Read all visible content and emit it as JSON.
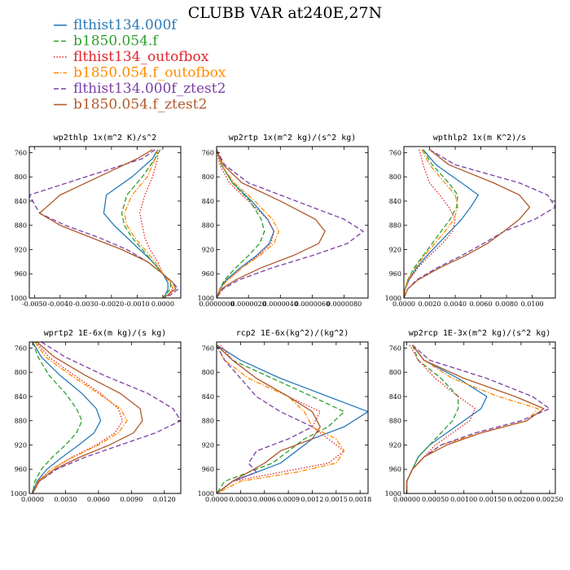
{
  "figure": {
    "title": "CLUBB VAR at240E,27N"
  },
  "legend": [
    {
      "label": "flthist134.000f",
      "color": "#2a7ab8",
      "dash": "solid"
    },
    {
      "label": "b1850.054.f",
      "color": "#2ca02c",
      "dash": "dash"
    },
    {
      "label": "flthist134_outofbox",
      "color": "#e3242b",
      "dash": "dot"
    },
    {
      "label": "b1850.054.f_outofbox",
      "color": "#ff8c00",
      "dash": "dashdot"
    },
    {
      "label": "flthist134.000f_ztest2",
      "color": "#7b3fa6",
      "dash": "dash"
    },
    {
      "label": "b1850.054.f_ztest2",
      "color": "#b05a2c",
      "dash": "solid"
    }
  ],
  "chart_data": [
    {
      "type": "line",
      "title": "wp2thlp  1x(m^2 K)/s^2",
      "xlim": [
        -0.0052,
        0.0007
      ],
      "ylim": [
        1000,
        750
      ],
      "x_ticks": [
        -0.005,
        -0.004,
        -0.003,
        -0.002,
        -0.001,
        0.0
      ],
      "x_tick_labels": [
        "-0.0050",
        "-0.0040",
        "-0.0030",
        "-0.0020",
        "-0.0010",
        "0.0000"
      ],
      "y_ticks": [
        760,
        800,
        840,
        880,
        920,
        960,
        1000
      ],
      "y": [
        755,
        770,
        800,
        830,
        860,
        880,
        900,
        920,
        940,
        960,
        975,
        985,
        995,
        1000
      ],
      "series": [
        {
          "x": [
            -0.0002,
            -0.0004,
            -0.0012,
            -0.0022,
            -0.0023,
            -0.0019,
            -0.0014,
            -0.0009,
            -0.0004,
            0.0,
            0.0002,
            0.0002,
            0.0001,
            0.0
          ]
        },
        {
          "x": [
            -0.0001,
            -0.0003,
            -0.0008,
            -0.0014,
            -0.0016,
            -0.0015,
            -0.0012,
            -0.0008,
            -0.0004,
            0.0,
            0.0003,
            0.0003,
            0.0001,
            0.0
          ]
        },
        {
          "x": [
            -0.0002,
            -0.0002,
            -0.0004,
            -0.0007,
            -0.0009,
            -0.0008,
            -0.0007,
            -0.0005,
            -0.0002,
            0.0,
            0.0003,
            0.0004,
            0.0002,
            0.0
          ]
        },
        {
          "x": [
            -0.0002,
            -0.0003,
            -0.0006,
            -0.0012,
            -0.0015,
            -0.0014,
            -0.0011,
            -0.0007,
            -0.0003,
            0.0,
            0.0003,
            0.0004,
            0.0002,
            0.0
          ]
        },
        {
          "x": [
            -0.0003,
            -0.0008,
            -0.003,
            -0.0052,
            -0.0048,
            -0.0038,
            -0.0025,
            -0.0014,
            -0.0006,
            0.0,
            0.0004,
            0.0006,
            0.0003,
            0.0
          ]
        },
        {
          "x": [
            -0.0004,
            -0.001,
            -0.0025,
            -0.004,
            -0.0048,
            -0.004,
            -0.0028,
            -0.0016,
            -0.0006,
            0.0,
            0.0004,
            0.0005,
            0.0002,
            0.0
          ]
        }
      ]
    },
    {
      "type": "line",
      "title": "wp2rtp  1x(m^2 kg)/(s^2 kg)",
      "xlim": [
        0.0,
        9.5e-06
      ],
      "ylim": [
        1000,
        750
      ],
      "x_ticks": [
        0.0,
        2e-06,
        4e-06,
        6e-06,
        8e-06
      ],
      "x_tick_labels": [
        "0.0000000",
        "0.0000020",
        "0.0000040",
        "0.0000060",
        "0.0000080"
      ],
      "y_ticks": [
        760,
        800,
        840,
        880,
        920,
        960,
        1000
      ],
      "y": [
        755,
        780,
        810,
        840,
        870,
        890,
        910,
        930,
        950,
        970,
        985,
        1000
      ],
      "series": [
        {
          "x": [
            0.0,
            3e-07,
            1e-06,
            2.2e-06,
            3.2e-06,
            3.6e-06,
            3.3e-06,
            2.5e-06,
            1.5e-06,
            6e-07,
            2e-07,
            0.0
          ]
        },
        {
          "x": [
            0.0,
            3e-07,
            1e-06,
            2.1e-06,
            2.8e-06,
            3e-06,
            2.7e-06,
            2e-06,
            1.2e-06,
            5e-07,
            2e-07,
            0.0
          ]
        },
        {
          "x": [
            0.0,
            2e-07,
            8e-07,
            2e-06,
            3.2e-06,
            3.6e-06,
            3.4e-06,
            2.6e-06,
            1.6e-06,
            7e-07,
            2e-07,
            0.0
          ]
        },
        {
          "x": [
            0.0,
            3e-07,
            1.1e-06,
            2.4e-06,
            3.5e-06,
            3.9e-06,
            3.6e-06,
            2.7e-06,
            1.6e-06,
            7e-07,
            2e-07,
            0.0
          ]
        },
        {
          "x": [
            0.0,
            5e-07,
            2e-06,
            5e-06,
            8e-06,
            9.2e-06,
            8.2e-06,
            6e-06,
            3.5e-06,
            1.4e-06,
            4e-07,
            0.0
          ]
        },
        {
          "x": [
            0.0,
            4e-07,
            1.6e-06,
            4e-06,
            6.2e-06,
            6.8e-06,
            6.4e-06,
            4.8e-06,
            2.8e-06,
            1.2e-06,
            3e-07,
            0.0
          ]
        }
      ]
    },
    {
      "type": "line",
      "title": "wpthlp2  1x(m K^2)/s",
      "xlim": [
        0.0,
        0.0118
      ],
      "ylim": [
        1000,
        750
      ],
      "x_ticks": [
        0.0,
        0.002,
        0.004,
        0.006,
        0.008,
        0.01
      ],
      "x_tick_labels": [
        "0.0000",
        "0.0020",
        "0.0040",
        "0.0060",
        "0.0080",
        "0.0100"
      ],
      "y_ticks": [
        760,
        800,
        840,
        880,
        920,
        960,
        1000
      ],
      "y": [
        755,
        780,
        810,
        830,
        850,
        870,
        890,
        910,
        930,
        950,
        970,
        985,
        1000
      ],
      "series": [
        {
          "x": [
            0.0015,
            0.0025,
            0.0045,
            0.0058,
            0.0052,
            0.0045,
            0.0036,
            0.0027,
            0.0018,
            0.001,
            0.0004,
            0.0001,
            0.0
          ]
        },
        {
          "x": [
            0.0015,
            0.0022,
            0.0035,
            0.0042,
            0.0041,
            0.0036,
            0.0029,
            0.0022,
            0.0015,
            0.0008,
            0.0003,
            0.0001,
            0.0
          ]
        },
        {
          "x": [
            0.0012,
            0.0015,
            0.002,
            0.0028,
            0.0035,
            0.004,
            0.0038,
            0.003,
            0.002,
            0.0011,
            0.0004,
            0.0001,
            0.0
          ]
        },
        {
          "x": [
            0.0014,
            0.002,
            0.0032,
            0.004,
            0.0042,
            0.0039,
            0.0032,
            0.0024,
            0.0016,
            0.0009,
            0.0003,
            0.0001,
            0.0
          ]
        },
        {
          "x": [
            0.002,
            0.004,
            0.009,
            0.0112,
            0.0118,
            0.0102,
            0.0078,
            0.0062,
            0.0045,
            0.0026,
            0.001,
            0.0003,
            0.0
          ]
        },
        {
          "x": [
            0.002,
            0.0035,
            0.007,
            0.009,
            0.0098,
            0.009,
            0.0078,
            0.0065,
            0.0048,
            0.0028,
            0.0011,
            0.0003,
            0.0
          ]
        }
      ]
    },
    {
      "type": "line",
      "title": "wprtp2  1E-6x(m kg)/(s kg)",
      "xlim": [
        -0.0003,
        0.0135
      ],
      "ylim": [
        1000,
        750
      ],
      "x_ticks": [
        0.0,
        0.003,
        0.006,
        0.009,
        0.012
      ],
      "x_tick_labels": [
        "0.0000",
        "0.0030",
        "0.0060",
        "0.0090",
        "0.0120"
      ],
      "y_ticks": [
        760,
        800,
        840,
        880,
        920,
        960,
        1000
      ],
      "y": [
        750,
        775,
        805,
        835,
        860,
        880,
        900,
        920,
        940,
        960,
        980,
        1000
      ],
      "series": [
        {
          "x": [
            0.0,
            0.0008,
            0.0025,
            0.0045,
            0.0058,
            0.0062,
            0.0056,
            0.0042,
            0.0027,
            0.0013,
            0.0004,
            0.0
          ]
        },
        {
          "x": [
            0.0,
            0.0005,
            0.0015,
            0.003,
            0.004,
            0.0045,
            0.004,
            0.003,
            0.0018,
            0.0008,
            0.0002,
            0.0
          ]
        },
        {
          "x": [
            0.0003,
            0.0015,
            0.0038,
            0.0062,
            0.0078,
            0.0082,
            0.0075,
            0.0058,
            0.0036,
            0.0017,
            0.0005,
            0.0
          ]
        },
        {
          "x": [
            0.0002,
            0.0012,
            0.0035,
            0.006,
            0.008,
            0.0086,
            0.0078,
            0.006,
            0.0037,
            0.0017,
            0.0005,
            0.0
          ]
        },
        {
          "x": [
            0.0008,
            0.003,
            0.0065,
            0.0105,
            0.0128,
            0.0135,
            0.0112,
            0.008,
            0.0048,
            0.0022,
            0.0006,
            0.0
          ]
        },
        {
          "x": [
            0.0004,
            0.002,
            0.0048,
            0.008,
            0.0098,
            0.01,
            0.0092,
            0.007,
            0.0043,
            0.002,
            0.0006,
            0.0
          ]
        }
      ]
    },
    {
      "type": "line",
      "title": "rcp2  1E-6x(kg^2)/(kg^2)",
      "xlim": [
        0.0,
        0.0019
      ],
      "ylim": [
        1000,
        750
      ],
      "x_ticks": [
        0.0,
        0.0003,
        0.0006,
        0.0009,
        0.0012,
        0.0015,
        0.0018
      ],
      "x_tick_labels": [
        "0.0000",
        "0.0003",
        "0.0006",
        "0.0009",
        "0.0012",
        "0.0015",
        "0.0018"
      ],
      "y_ticks": [
        760,
        800,
        840,
        880,
        920,
        960,
        1000
      ],
      "y": [
        755,
        780,
        810,
        840,
        865,
        890,
        910,
        930,
        950,
        965,
        980,
        1000
      ],
      "series": [
        {
          "x": [
            0.0,
            0.0003,
            0.0008,
            0.0014,
            0.0019,
            0.0016,
            0.0012,
            0.001,
            0.0008,
            0.0005,
            0.0002,
            0.0
          ]
        },
        {
          "x": [
            0.0,
            0.0002,
            0.0007,
            0.0012,
            0.0016,
            0.0014,
            0.0011,
            0.0009,
            0.0007,
            0.0004,
            0.0001,
            0.0
          ]
        },
        {
          "x": [
            5e-05,
            0.0002,
            0.0005,
            0.0009,
            0.0013,
            0.0012,
            0.0014,
            0.0016,
            0.0014,
            0.0008,
            0.0002,
            0.0
          ]
        },
        {
          "x": [
            0.0,
            0.0001,
            0.0004,
            0.0009,
            0.0011,
            0.0012,
            0.0015,
            0.0016,
            0.0015,
            0.001,
            0.0003,
            0.0
          ]
        },
        {
          "x": [
            0.0,
            0.0001,
            0.0003,
            0.0005,
            0.0008,
            0.0012,
            0.0009,
            0.0005,
            0.0004,
            0.0005,
            0.0002,
            0.0
          ]
        },
        {
          "x": [
            0.0,
            0.0002,
            0.0005,
            0.0009,
            0.0012,
            0.0013,
            0.0012,
            0.0008,
            0.0006,
            0.0004,
            0.0002,
            0.0
          ]
        }
      ]
    },
    {
      "type": "line",
      "title": "wp2rcp  1E-3x(m^2 kg)/(s^2 kg)",
      "xlim": [
        -5e-05,
        0.0026
      ],
      "ylim": [
        1000,
        750
      ],
      "x_ticks": [
        0.0,
        0.0005,
        0.001,
        0.0015,
        0.002,
        0.0025
      ],
      "x_tick_labels": [
        "0.00000",
        "0.00050",
        "0.00100",
        "0.00150",
        "0.00200",
        "0.00250"
      ],
      "y_ticks": [
        760,
        800,
        840,
        880,
        920,
        960,
        1000
      ],
      "y": [
        755,
        780,
        810,
        840,
        860,
        880,
        900,
        920,
        940,
        960,
        980,
        1000
      ],
      "series": [
        {
          "x": [
            0.0001,
            0.0003,
            0.0009,
            0.0014,
            0.0013,
            0.001,
            0.0007,
            0.0004,
            0.0002,
            0.0001,
            0.0,
            0.0
          ]
        },
        {
          "x": [
            0.0001,
            0.0002,
            0.0006,
            0.0009,
            0.0009,
            0.0008,
            0.0006,
            0.0004,
            0.0002,
            0.0001,
            0.0,
            0.0
          ]
        },
        {
          "x": [
            5e-05,
            0.0002,
            0.0005,
            0.0009,
            0.0012,
            0.0011,
            0.0008,
            0.0005,
            0.0003,
            0.0001,
            0.0,
            0.0
          ]
        },
        {
          "x": [
            0.0001,
            0.0003,
            0.0008,
            0.0016,
            0.0023,
            0.0021,
            0.0013,
            0.0006,
            0.0003,
            0.0001,
            0.0,
            0.0
          ]
        },
        {
          "x": [
            0.0001,
            0.0004,
            0.0014,
            0.0022,
            0.0025,
            0.002,
            0.0012,
            0.0006,
            0.0003,
            0.0001,
            0.0,
            0.0
          ]
        },
        {
          "x": [
            0.0001,
            0.0003,
            0.001,
            0.0019,
            0.0024,
            0.0021,
            0.0013,
            0.0007,
            0.0003,
            0.0001,
            0.0,
            0.0
          ]
        }
      ]
    }
  ]
}
